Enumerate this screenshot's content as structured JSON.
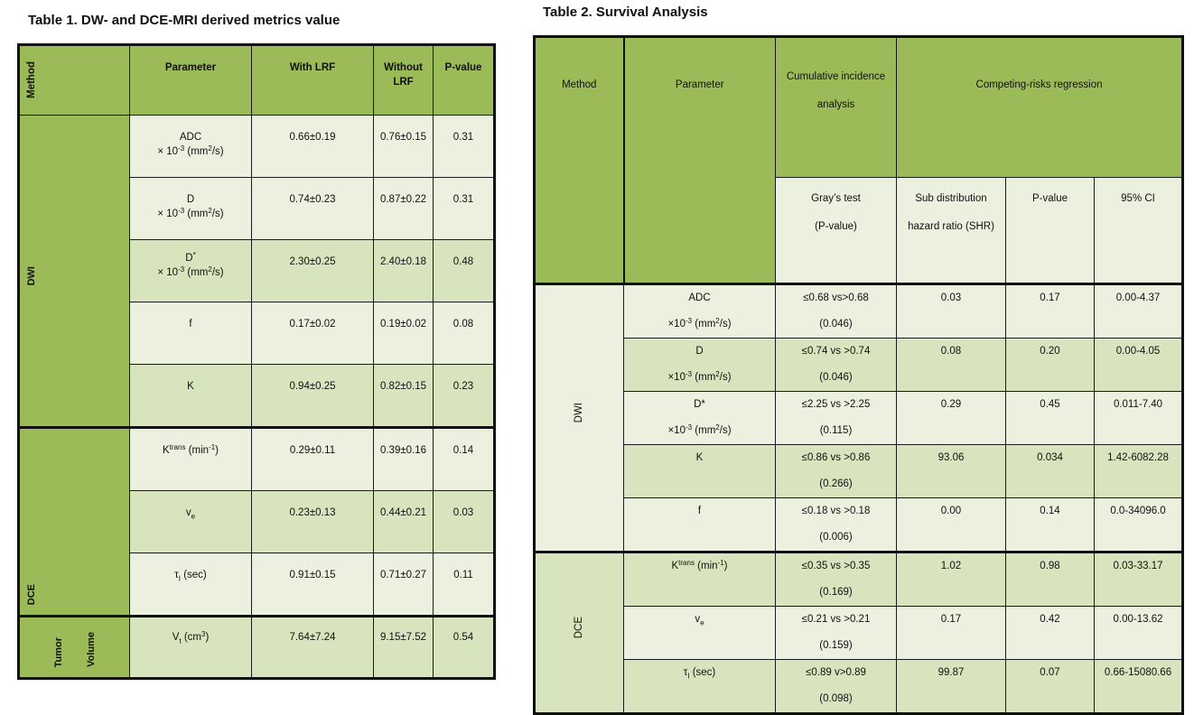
{
  "table1": {
    "title": "Table 1. DW- and DCE-MRI derived metrics value",
    "headers": {
      "method": "Method",
      "parameter": "Parameter",
      "with_lrf": "With LRF",
      "without_lrf_1": "Without",
      "without_lrf_2": "LRF",
      "pvalue": "P-value"
    },
    "groups": {
      "dwi": "DWI",
      "dce": "DCE",
      "tumor_1": "Tumor",
      "tumor_2": "Volume"
    },
    "rows": [
      {
        "p1": "ADC",
        "p2": "× 10",
        "p2sup": "-3",
        "p2b": " (mm",
        "p2sup2": "2",
        "p2c": "/s)",
        "with": "0.66±0.19",
        "without": "0.76±0.15",
        "pv": "0.31"
      },
      {
        "p1": "D",
        "p2": "× 10",
        "p2sup": "-3",
        "p2b": " (mm",
        "p2sup2": "2",
        "p2c": "/s)",
        "with": "0.74±0.23",
        "without": "0.87±0.22",
        "pv": "0.31"
      },
      {
        "p1": "D",
        "p1sup": "*",
        "p2": "× 10",
        "p2sup": "-3",
        "p2b": " (mm",
        "p2sup2": "2",
        "p2c": "/s)",
        "with": "2.30±0.25",
        "without": "2.40±0.18",
        "pv": "0.48"
      },
      {
        "p1": "f",
        "with": "0.17±0.02",
        "without": "0.19±0.02",
        "pv": "0.08"
      },
      {
        "p1": "K",
        "with": "0.94±0.25",
        "without": "0.82±0.15",
        "pv": "0.23"
      },
      {
        "p1": "K",
        "p1sup": "trans",
        "p1b": " (min",
        "p1sup2": "-1",
        "p1c": ")",
        "with": "0.29±0.11",
        "without": "0.39±0.16",
        "pv": "0.14"
      },
      {
        "p1": "v",
        "p1sub": "e",
        "with": "0.23±0.13",
        "without": "0.44±0.21",
        "pv": "0.03"
      },
      {
        "p1": "τ",
        "p1sub": "I",
        "p1b": " (sec)",
        "with": "0.91±0.15",
        "without": "0.71±0.27",
        "pv": "0.11"
      },
      {
        "p1": "V",
        "p1sub": "t",
        "p1b": " (cm",
        "p1sup2": "3",
        "p1c": ")",
        "with": "7.64±7.24",
        "without": "9.15±7.52",
        "pv": "0.54"
      }
    ]
  },
  "table2": {
    "title": "Table 2. Survival Analysis",
    "headers": {
      "method": "Method",
      "parameter": "Parameter",
      "cia_1": "Cumulative incidence",
      "cia_2": "analysis",
      "crr": "Competing-risks regression",
      "gray_1": "Gray’s test",
      "gray_2": "(P-value)",
      "shr_1": "Sub distribution",
      "shr_2": "hazard ratio (SHR)",
      "pvalue": "P-value",
      "ci": "95% CI"
    },
    "groups": {
      "dwi": "DWI",
      "dce": "DCE"
    },
    "rows": [
      {
        "p1": "ADC",
        "p2": "×10",
        "p2sup": "-3",
        "p2b": " (mm",
        "p2sup2": "2",
        "p2c": "/s)",
        "g1": "≤0.68 vs>0.68",
        "g2": "(0.046)",
        "shr": "0.03",
        "pv": "0.17",
        "ci": "0.00-4.37"
      },
      {
        "p1": "D",
        "p2": "×10",
        "p2sup": "-3",
        "p2b": " (mm",
        "p2sup2": "2",
        "p2c": "/s)",
        "g1": "≤0.74 vs >0.74",
        "g2": "(0.046)",
        "shr": "0.08",
        "pv": "0.20",
        "ci": "0.00-4.05"
      },
      {
        "p1": "D*",
        "p2": "×10",
        "p2sup": "-3",
        "p2b": " (mm",
        "p2sup2": "2",
        "p2c": "/s)",
        "g1": "≤2.25 vs >2.25",
        "g2": "(0.115)",
        "shr": "0.29",
        "pv": "0.45",
        "ci": "0.011-7.40"
      },
      {
        "p1": "K",
        "g1": "≤0.86 vs >0.86",
        "g2": "(0.266)",
        "shr": "93.06",
        "pv": "0.034",
        "ci": "1.42-6082.28"
      },
      {
        "p1": "f",
        "g1": "≤0.18 vs >0.18",
        "g2": "(0.006)",
        "shr": "0.00",
        "pv": "0.14",
        "ci": "0.0-34096.0"
      },
      {
        "p1": "K",
        "p1sup": "trans",
        "p1b": " (min",
        "p1sup2": "-1",
        "p1c": ")",
        "g1": "≤0.35 vs >0.35",
        "g2": "(0.169)",
        "shr": "1.02",
        "pv": "0.98",
        "ci": "0.03-33.17"
      },
      {
        "p1": "v",
        "p1sub": "e",
        "g1": "≤0.21 vs >0.21",
        "g2": "(0.159)",
        "shr": "0.17",
        "pv": "0.42",
        "ci": "0.00-13.62"
      },
      {
        "p1": "τ",
        "p1sub": "I",
        "p1b": " (sec)",
        "g1": "≤0.89 v>0.89",
        "g2": "(0.098)",
        "shr": "99.87",
        "pv": "0.07",
        "ci": "0.66-15080.66"
      }
    ]
  }
}
